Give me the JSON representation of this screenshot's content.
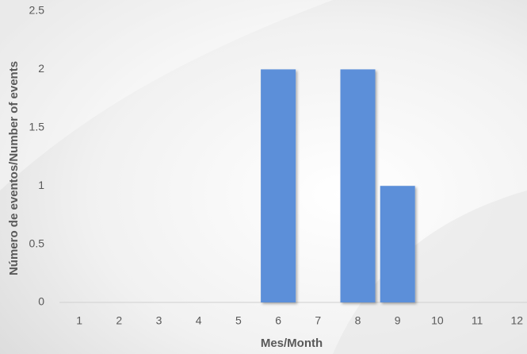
{
  "chart_data": {
    "type": "bar",
    "categories": [
      "1",
      "2",
      "3",
      "4",
      "5",
      "6",
      "7",
      "8",
      "9",
      "10",
      "11",
      "12"
    ],
    "values": [
      0,
      0,
      0,
      0,
      0,
      2,
      0,
      2,
      1,
      0,
      0,
      0
    ],
    "color": "#5b8fd9",
    "x_label": "Mes/Month",
    "y_label": "Número de eventos/Number of events",
    "ylim": [
      0,
      2.5
    ],
    "yticks": [
      0,
      0.5,
      1,
      1.5,
      2,
      2.5
    ],
    "grid": false
  }
}
